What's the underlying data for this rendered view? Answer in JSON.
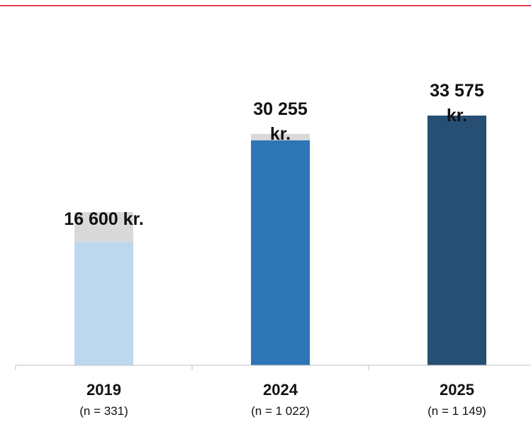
{
  "chart_data": {
    "type": "bar",
    "categories": [
      "2019",
      "2024",
      "2025"
    ],
    "sample_sizes": [
      "(n = 331)",
      "(n = 1 022)",
      "(n = 1 149)"
    ],
    "series": [
      {
        "colors": [
          "#bdd7ee",
          "#2e75b6",
          "#264f73"
        ],
        "values": [
          16600,
          30255,
          33575
        ],
        "value_labels": [
          "16 600 kr.",
          "30 255 kr.",
          "33 575 kr."
        ]
      },
      {
        "color": "#d9d9d9",
        "values": [
          4000,
          860,
          0
        ]
      }
    ],
    "ylim": [
      0,
      35000
    ]
  }
}
